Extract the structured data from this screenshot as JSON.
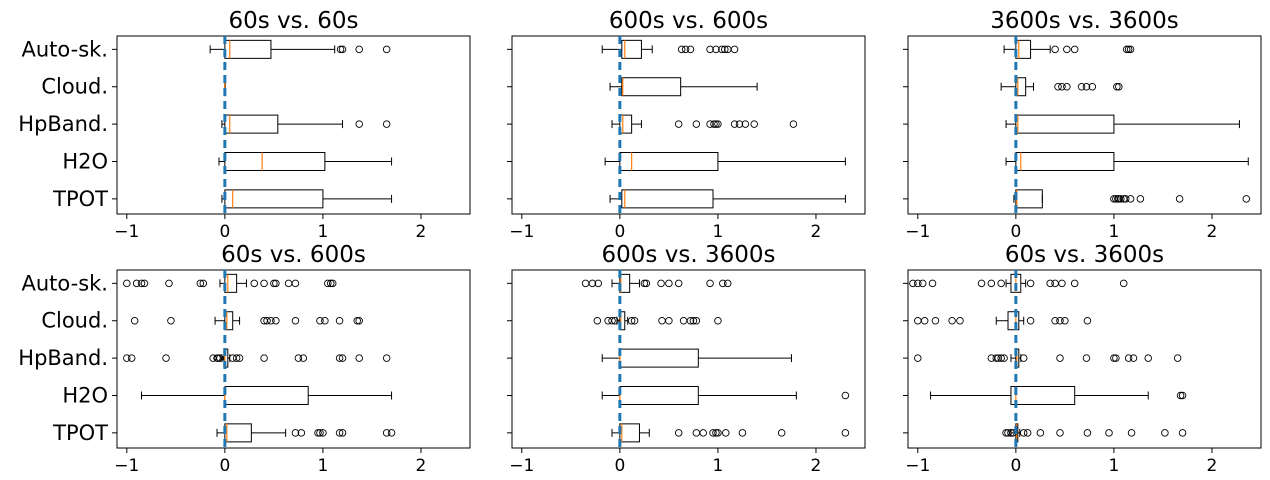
{
  "chart_data": [
    {
      "type": "boxplot",
      "title": "60s vs. 60s",
      "categories": [
        "Auto-sk.",
        "Cloud.",
        "HpBand.",
        "H2O",
        "TPOT"
      ],
      "xlim": [
        -1.1,
        2.5
      ],
      "xticks": [
        -1,
        0,
        1,
        2
      ],
      "reference_line_x": 0,
      "boxes": [
        {
          "category": "Auto-sk.",
          "whisker_low": -0.15,
          "q1": 0.0,
          "median": 0.05,
          "q3": 0.47,
          "whisker_high": 1.12,
          "outliers": [
            1.18,
            1.2,
            1.37,
            1.65
          ]
        },
        {
          "category": "Cloud.",
          "whisker_low": 0.0,
          "q1": 0.0,
          "median": 0.0,
          "q3": 0.0,
          "whisker_high": 0.0,
          "outliers": []
        },
        {
          "category": "HpBand.",
          "whisker_low": -0.03,
          "q1": 0.0,
          "median": 0.05,
          "q3": 0.54,
          "whisker_high": 1.2,
          "outliers": [
            1.37,
            1.65
          ]
        },
        {
          "category": "H2O",
          "whisker_low": -0.06,
          "q1": 0.0,
          "median": 0.38,
          "q3": 1.02,
          "whisker_high": 1.7,
          "outliers": []
        },
        {
          "category": "TPOT",
          "whisker_low": -0.03,
          "q1": 0.0,
          "median": 0.08,
          "q3": 1.0,
          "whisker_high": 1.7,
          "outliers": []
        }
      ]
    },
    {
      "type": "boxplot",
      "title": "600s vs. 600s",
      "categories": [
        "Auto-sk.",
        "Cloud.",
        "HpBand.",
        "H2O",
        "TPOT"
      ],
      "xlim": [
        -1.1,
        2.5
      ],
      "xticks": [
        -1,
        0,
        1,
        2
      ],
      "reference_line_x": 0,
      "boxes": [
        {
          "category": "Auto-sk.",
          "whisker_low": -0.18,
          "q1": 0.02,
          "median": 0.05,
          "q3": 0.22,
          "whisker_high": 0.33,
          "outliers": [
            0.63,
            0.67,
            0.72,
            0.92,
            0.98,
            1.04,
            1.07,
            1.1,
            1.17
          ]
        },
        {
          "category": "Cloud.",
          "whisker_low": -0.1,
          "q1": 0.02,
          "median": 0.03,
          "q3": 0.62,
          "whisker_high": 1.4,
          "outliers": []
        },
        {
          "category": "HpBand.",
          "whisker_low": -0.08,
          "q1": 0.0,
          "median": 0.03,
          "q3": 0.12,
          "whisker_high": 0.22,
          "outliers": [
            0.6,
            0.78,
            0.92,
            0.96,
            0.98,
            1.0,
            1.17,
            1.22,
            1.28,
            1.37,
            1.77
          ]
        },
        {
          "category": "H2O",
          "whisker_low": -0.15,
          "q1": 0.0,
          "median": 0.12,
          "q3": 1.0,
          "whisker_high": 2.3,
          "outliers": []
        },
        {
          "category": "TPOT",
          "whisker_low": -0.1,
          "q1": 0.02,
          "median": 0.05,
          "q3": 0.95,
          "whisker_high": 2.3,
          "outliers": []
        }
      ]
    },
    {
      "type": "boxplot",
      "title": "3600s vs. 3600s",
      "categories": [
        "Auto-sk.",
        "Cloud.",
        "HpBand.",
        "H2O",
        "TPOT"
      ],
      "xlim": [
        -1.1,
        2.5
      ],
      "xticks": [
        -1,
        0,
        1,
        2
      ],
      "reference_line_x": 0,
      "boxes": [
        {
          "category": "Auto-sk.",
          "whisker_low": -0.12,
          "q1": 0.0,
          "median": 0.03,
          "q3": 0.15,
          "whisker_high": 0.35,
          "outliers": [
            0.4,
            0.52,
            0.6,
            1.13,
            1.15,
            1.17
          ]
        },
        {
          "category": "Cloud.",
          "whisker_low": -0.15,
          "q1": 0.0,
          "median": 0.02,
          "q3": 0.1,
          "whisker_high": 0.18,
          "outliers": [
            0.43,
            0.47,
            0.52,
            0.67,
            0.72,
            0.78,
            1.03,
            1.05
          ]
        },
        {
          "category": "HpBand.",
          "whisker_low": -0.1,
          "q1": 0.0,
          "median": 0.02,
          "q3": 1.0,
          "whisker_high": 2.28,
          "outliers": []
        },
        {
          "category": "H2O",
          "whisker_low": -0.1,
          "q1": 0.0,
          "median": 0.05,
          "q3": 1.0,
          "whisker_high": 2.37,
          "outliers": []
        },
        {
          "category": "TPOT",
          "whisker_low": -0.02,
          "q1": 0.0,
          "median": 0.01,
          "q3": 0.27,
          "whisker_high": 0.27,
          "outliers": [
            1.0,
            1.02,
            1.04,
            1.05,
            1.07,
            1.1,
            1.12,
            1.17,
            1.27,
            1.67,
            2.35
          ]
        }
      ]
    },
    {
      "type": "boxplot",
      "title": "60s vs. 600s",
      "categories": [
        "Auto-sk.",
        "Cloud.",
        "HpBand.",
        "H2O",
        "TPOT"
      ],
      "xlim": [
        -1.1,
        2.5
      ],
      "xticks": [
        -1,
        0,
        1,
        2
      ],
      "reference_line_x": 0,
      "boxes": [
        {
          "category": "Auto-sk.",
          "whisker_low": -0.05,
          "q1": 0.0,
          "median": 0.03,
          "q3": 0.12,
          "whisker_high": 0.22,
          "outliers": [
            -1.0,
            -0.9,
            -0.85,
            -0.82,
            -0.57,
            -0.25,
            -0.22,
            0.3,
            0.4,
            0.5,
            0.52,
            0.65,
            0.72,
            1.05,
            1.08,
            1.1
          ]
        },
        {
          "category": "Cloud.",
          "whisker_low": -0.1,
          "q1": 0.0,
          "median": 0.02,
          "q3": 0.08,
          "whisker_high": 0.15,
          "outliers": [
            -0.92,
            -0.55,
            0.4,
            0.43,
            0.47,
            0.52,
            0.72,
            0.97,
            1.02,
            1.17,
            1.35,
            1.37
          ]
        },
        {
          "category": "HpBand.",
          "whisker_low": -0.03,
          "q1": -0.01,
          "median": 0.0,
          "q3": 0.03,
          "whisker_high": 0.05,
          "outliers": [
            -1.0,
            -0.95,
            -0.6,
            -0.12,
            -0.08,
            -0.07,
            -0.05,
            0.08,
            0.12,
            0.15,
            0.4,
            0.75,
            0.8,
            1.17,
            1.2,
            1.37,
            1.65
          ]
        },
        {
          "category": "H2O",
          "whisker_low": -0.85,
          "q1": 0.0,
          "median": 0.0,
          "q3": 0.85,
          "whisker_high": 1.7,
          "outliers": []
        },
        {
          "category": "TPOT",
          "whisker_low": -0.08,
          "q1": 0.0,
          "median": 0.02,
          "q3": 0.27,
          "whisker_high": 0.62,
          "outliers": [
            0.72,
            0.78,
            0.95,
            0.97,
            1.0,
            1.17,
            1.2,
            1.65,
            1.7
          ]
        }
      ]
    },
    {
      "type": "boxplot",
      "title": "600s vs. 3600s",
      "categories": [
        "Auto-sk.",
        "Cloud.",
        "HpBand.",
        "H2O",
        "TPOT"
      ],
      "xlim": [
        -1.1,
        2.5
      ],
      "xticks": [
        -1,
        0,
        1,
        2
      ],
      "reference_line_x": 0,
      "boxes": [
        {
          "category": "Auto-sk.",
          "whisker_low": -0.08,
          "q1": 0.0,
          "median": 0.01,
          "q3": 0.1,
          "whisker_high": 0.2,
          "outliers": [
            -0.35,
            -0.28,
            -0.22,
            0.25,
            0.27,
            0.42,
            0.5,
            0.6,
            0.92,
            1.05,
            1.1
          ]
        },
        {
          "category": "Cloud.",
          "whisker_low": -0.03,
          "q1": 0.0,
          "median": 0.01,
          "q3": 0.05,
          "whisker_high": 0.08,
          "outliers": [
            -0.23,
            -0.12,
            -0.08,
            -0.05,
            0.12,
            0.15,
            0.43,
            0.5,
            0.65,
            0.72,
            0.75,
            0.78,
            1.0
          ]
        },
        {
          "category": "HpBand.",
          "whisker_low": -0.18,
          "q1": 0.0,
          "median": 0.0,
          "q3": 0.8,
          "whisker_high": 1.75,
          "outliers": []
        },
        {
          "category": "H2O",
          "whisker_low": -0.18,
          "q1": 0.0,
          "median": 0.0,
          "q3": 0.8,
          "whisker_high": 1.8,
          "outliers": [
            2.3
          ]
        },
        {
          "category": "TPOT",
          "whisker_low": -0.08,
          "q1": 0.0,
          "median": 0.02,
          "q3": 0.2,
          "whisker_high": 0.3,
          "outliers": [
            0.6,
            0.78,
            0.85,
            0.95,
            0.98,
            1.0,
            1.08,
            1.25,
            1.65,
            2.3
          ]
        }
      ]
    },
    {
      "type": "boxplot",
      "title": "60s vs. 3600s",
      "categories": [
        "Auto-sk.",
        "Cloud.",
        "HpBand.",
        "H2O",
        "TPOT"
      ],
      "xlim": [
        -1.1,
        2.5
      ],
      "xticks": [
        -1,
        0,
        1,
        2
      ],
      "reference_line_x": 0,
      "boxes": [
        {
          "category": "Auto-sk.",
          "whisker_low": -0.1,
          "q1": -0.05,
          "median": 0.0,
          "q3": 0.05,
          "whisker_high": 0.1,
          "outliers": [
            -1.05,
            -1.0,
            -0.95,
            -0.85,
            -0.35,
            -0.25,
            -0.15,
            0.15,
            0.35,
            0.4,
            0.47,
            0.6,
            1.1
          ]
        },
        {
          "category": "Cloud.",
          "whisker_low": -0.2,
          "q1": -0.08,
          "median": 0.0,
          "q3": 0.03,
          "whisker_high": 0.08,
          "outliers": [
            -1.0,
            -0.93,
            -0.82,
            -0.65,
            -0.57,
            0.15,
            0.4,
            0.45,
            0.5,
            0.73
          ]
        },
        {
          "category": "HpBand.",
          "whisker_low": -0.05,
          "q1": 0.0,
          "median": 0.01,
          "q3": 0.03,
          "whisker_high": 0.05,
          "outliers": [
            -1.0,
            -0.25,
            -0.2,
            -0.18,
            -0.15,
            -0.12,
            0.08,
            0.45,
            0.72,
            1.0,
            1.02,
            1.15,
            1.2,
            1.35,
            1.65
          ]
        },
        {
          "category": "H2O",
          "whisker_low": -0.87,
          "q1": -0.05,
          "median": 0.0,
          "q3": 0.6,
          "whisker_high": 1.35,
          "outliers": [
            1.68,
            1.7
          ]
        },
        {
          "category": "TPOT",
          "whisker_low": -0.05,
          "q1": 0.0,
          "median": 0.01,
          "q3": 0.02,
          "whisker_high": 0.04,
          "outliers": [
            -0.1,
            -0.08,
            -0.05,
            -0.03,
            0.08,
            0.12,
            0.25,
            0.45,
            0.73,
            0.95,
            1.18,
            1.52,
            1.7
          ]
        }
      ]
    }
  ]
}
